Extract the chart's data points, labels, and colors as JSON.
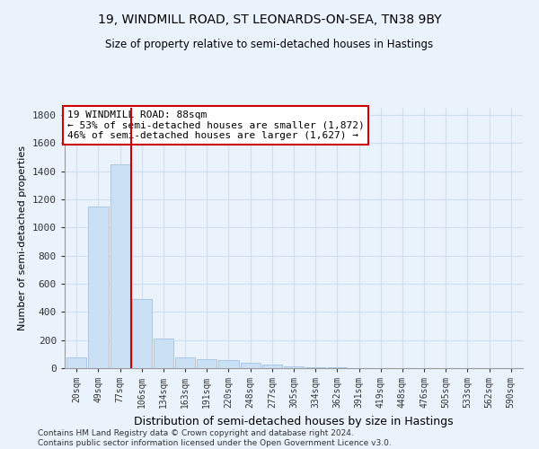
{
  "title": "19, WINDMILL ROAD, ST LEONARDS-ON-SEA, TN38 9BY",
  "subtitle": "Size of property relative to semi-detached houses in Hastings",
  "xlabel": "Distribution of semi-detached houses by size in Hastings",
  "ylabel": "Number of semi-detached properties",
  "footnote": "Contains HM Land Registry data © Crown copyright and database right 2024.\nContains public sector information licensed under the Open Government Licence v3.0.",
  "bar_labels": [
    "20sqm",
    "49sqm",
    "77sqm",
    "106sqm",
    "134sqm",
    "163sqm",
    "191sqm",
    "220sqm",
    "248sqm",
    "277sqm",
    "305sqm",
    "334sqm",
    "362sqm",
    "391sqm",
    "419sqm",
    "448sqm",
    "476sqm",
    "505sqm",
    "533sqm",
    "562sqm",
    "590sqm"
  ],
  "bar_values": [
    75,
    1150,
    1450,
    490,
    210,
    75,
    65,
    55,
    40,
    28,
    15,
    5,
    5,
    2,
    0,
    0,
    0,
    0,
    0,
    0,
    0
  ],
  "bar_color": "#cce0f5",
  "bar_edge_color": "#aac8e8",
  "grid_color": "#d0dff0",
  "background_color": "#eaf2fb",
  "vline_x": 2.5,
  "vline_color": "#cc0000",
  "annotation_text": "19 WINDMILL ROAD: 88sqm\n← 53% of semi-detached houses are smaller (1,872)\n46% of semi-detached houses are larger (1,627) →",
  "annotation_box_color": "#ffffff",
  "annotation_box_edge": "#cc0000",
  "ylim": [
    0,
    1850
  ],
  "yticks": [
    0,
    200,
    400,
    600,
    800,
    1000,
    1200,
    1400,
    1600,
    1800
  ]
}
